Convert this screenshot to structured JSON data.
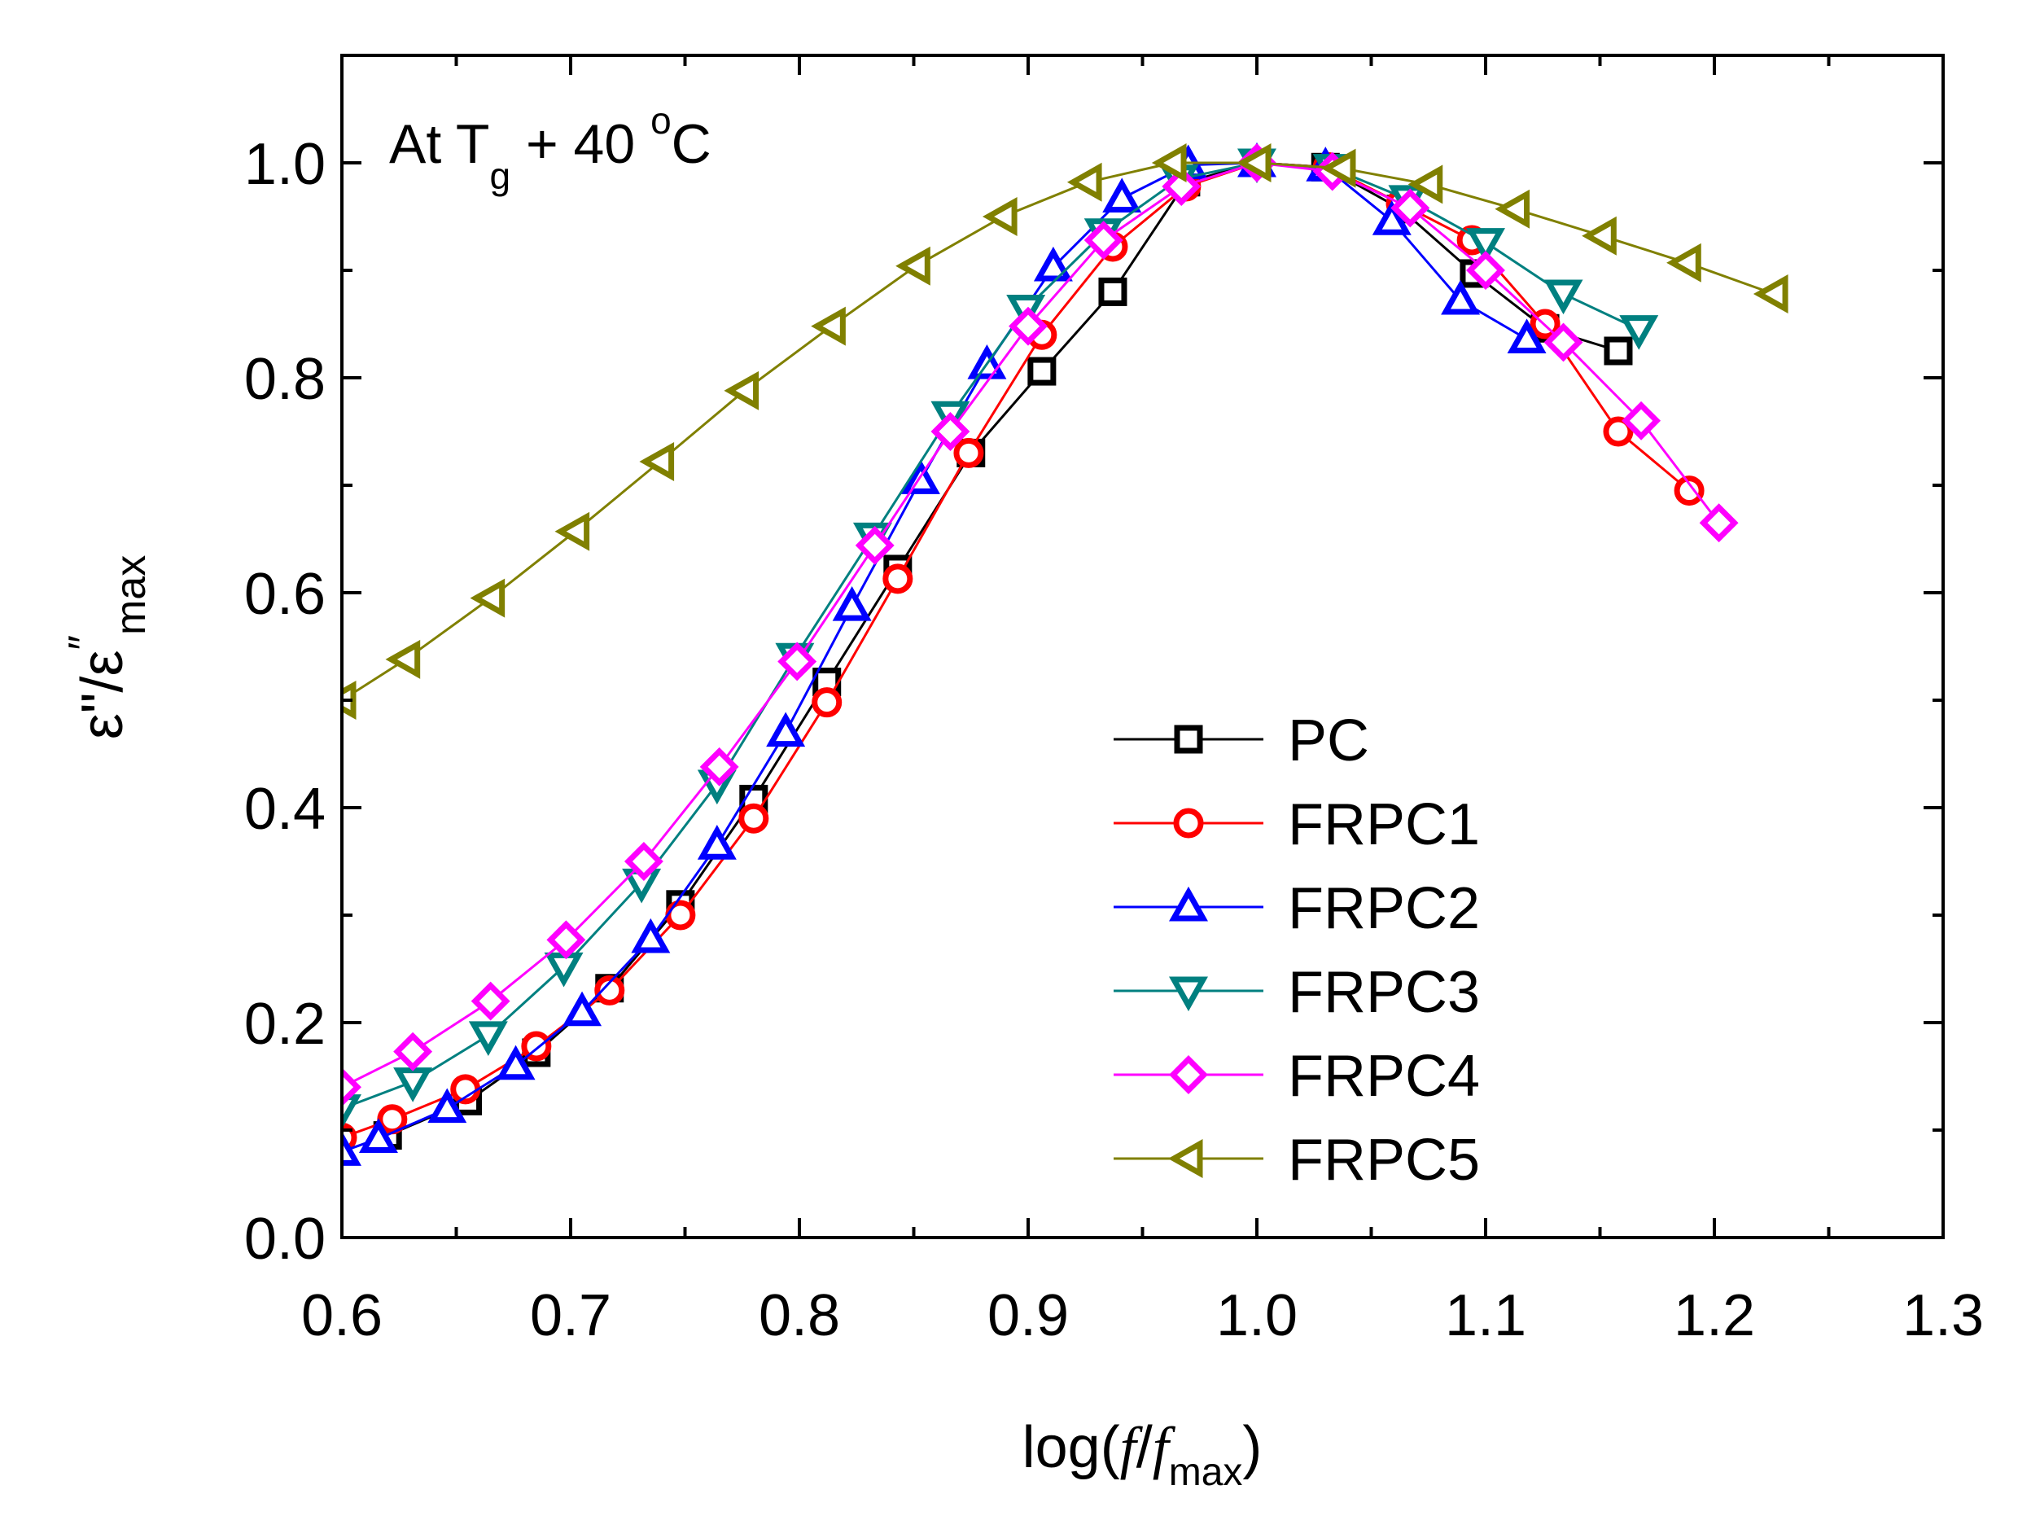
{
  "chart_data": {
    "type": "line",
    "annotation": {
      "prefix": "At T",
      "sub": "g",
      "middle": " + 40 ",
      "sup": "o",
      "suffix": "C"
    },
    "xlabel": {
      "prefix": "log(",
      "f1": "f",
      "slash": "/",
      "f2": "f",
      "sub": "max",
      "suffix": ")"
    },
    "ylabel": {
      "main": "ε\"/ε",
      "sup": "″",
      "sub": "max"
    },
    "xlim": [
      0.6,
      1.3
    ],
    "ylim": [
      0.0,
      1.1
    ],
    "xticks": [
      0.6,
      0.7,
      0.8,
      0.9,
      1.0,
      1.1,
      1.2,
      1.3
    ],
    "xtick_labels": [
      "0.6",
      "0.7",
      "0.8",
      "0.9",
      "1.0",
      "1.1",
      "1.2",
      "1.3"
    ],
    "yticks": [
      0.0,
      0.2,
      0.4,
      0.6,
      0.8,
      1.0
    ],
    "ytick_labels": [
      "0.0",
      "0.2",
      "0.4",
      "0.6",
      "0.8",
      "1.0"
    ],
    "legend_position": "center-right",
    "series": [
      {
        "name": "PC",
        "color": "#000000",
        "marker": "square",
        "x": [
          0.62,
          0.655,
          0.685,
          0.717,
          0.748,
          0.78,
          0.812,
          0.843,
          0.875,
          0.906,
          0.937,
          0.969,
          1.0,
          1.03,
          1.063,
          1.095,
          1.126,
          1.158
        ],
        "y": [
          0.095,
          0.127,
          0.172,
          0.232,
          0.31,
          0.408,
          0.517,
          0.622,
          0.73,
          0.806,
          0.88,
          0.982,
          1.0,
          0.996,
          0.957,
          0.897,
          0.846,
          0.825
        ]
      },
      {
        "name": "FRPC1",
        "color": "#ff0000",
        "marker": "circle",
        "x": [
          0.6,
          0.622,
          0.654,
          0.685,
          0.717,
          0.748,
          0.78,
          0.812,
          0.843,
          0.874,
          0.906,
          0.937,
          0.969,
          1.0,
          1.031,
          1.063,
          1.094,
          1.126,
          1.158,
          1.189
        ],
        "y": [
          0.093,
          0.11,
          0.138,
          0.178,
          0.23,
          0.3,
          0.39,
          0.498,
          0.613,
          0.73,
          0.84,
          0.922,
          0.978,
          1.0,
          0.996,
          0.962,
          0.928,
          0.85,
          0.75,
          0.695
        ]
      },
      {
        "name": "FRPC2",
        "color": "#0000ff",
        "marker": "triangle-up",
        "x": [
          0.6,
          0.616,
          0.646,
          0.676,
          0.705,
          0.735,
          0.764,
          0.794,
          0.823,
          0.853,
          0.882,
          0.911,
          0.941,
          0.97,
          1.0,
          1.03,
          1.059,
          1.089,
          1.118
        ],
        "y": [
          0.08,
          0.092,
          0.12,
          0.16,
          0.21,
          0.278,
          0.365,
          0.47,
          0.587,
          0.705,
          0.812,
          0.903,
          0.967,
          0.998,
          1.0,
          0.996,
          0.946,
          0.872,
          0.836
        ]
      },
      {
        "name": "FRPC3",
        "color": "#008080",
        "marker": "triangle-down",
        "x": [
          0.6,
          0.631,
          0.664,
          0.697,
          0.731,
          0.764,
          0.798,
          0.832,
          0.866,
          0.899,
          0.933,
          0.966,
          1.0,
          1.033,
          1.066,
          1.1,
          1.134,
          1.167
        ],
        "y": [
          0.12,
          0.145,
          0.188,
          0.252,
          0.33,
          0.422,
          0.54,
          0.652,
          0.765,
          0.864,
          0.935,
          0.985,
          1.0,
          0.995,
          0.966,
          0.926,
          0.878,
          0.845
        ]
      },
      {
        "name": "FRPC4",
        "color": "#ff00ff",
        "marker": "diamond",
        "x": [
          0.6,
          0.631,
          0.665,
          0.698,
          0.732,
          0.765,
          0.799,
          0.833,
          0.866,
          0.9,
          0.933,
          0.967,
          1.0,
          1.033,
          1.067,
          1.1,
          1.134,
          1.168,
          1.202
        ],
        "y": [
          0.14,
          0.173,
          0.22,
          0.277,
          0.35,
          0.438,
          0.536,
          0.644,
          0.75,
          0.848,
          0.928,
          0.978,
          1.0,
          0.992,
          0.958,
          0.9,
          0.833,
          0.76,
          0.665
        ]
      },
      {
        "name": "FRPC5",
        "color": "#808000",
        "marker": "triangle-left",
        "x": [
          0.6,
          0.628,
          0.665,
          0.702,
          0.739,
          0.776,
          0.814,
          0.851,
          0.889,
          0.926,
          0.963,
          1.0,
          1.037,
          1.075,
          1.113,
          1.151,
          1.188,
          1.226
        ],
        "y": [
          0.5,
          0.538,
          0.595,
          0.657,
          0.722,
          0.788,
          0.848,
          0.904,
          0.95,
          0.982,
          1.0,
          1.0,
          0.995,
          0.98,
          0.957,
          0.932,
          0.907,
          0.878
        ]
      }
    ]
  }
}
